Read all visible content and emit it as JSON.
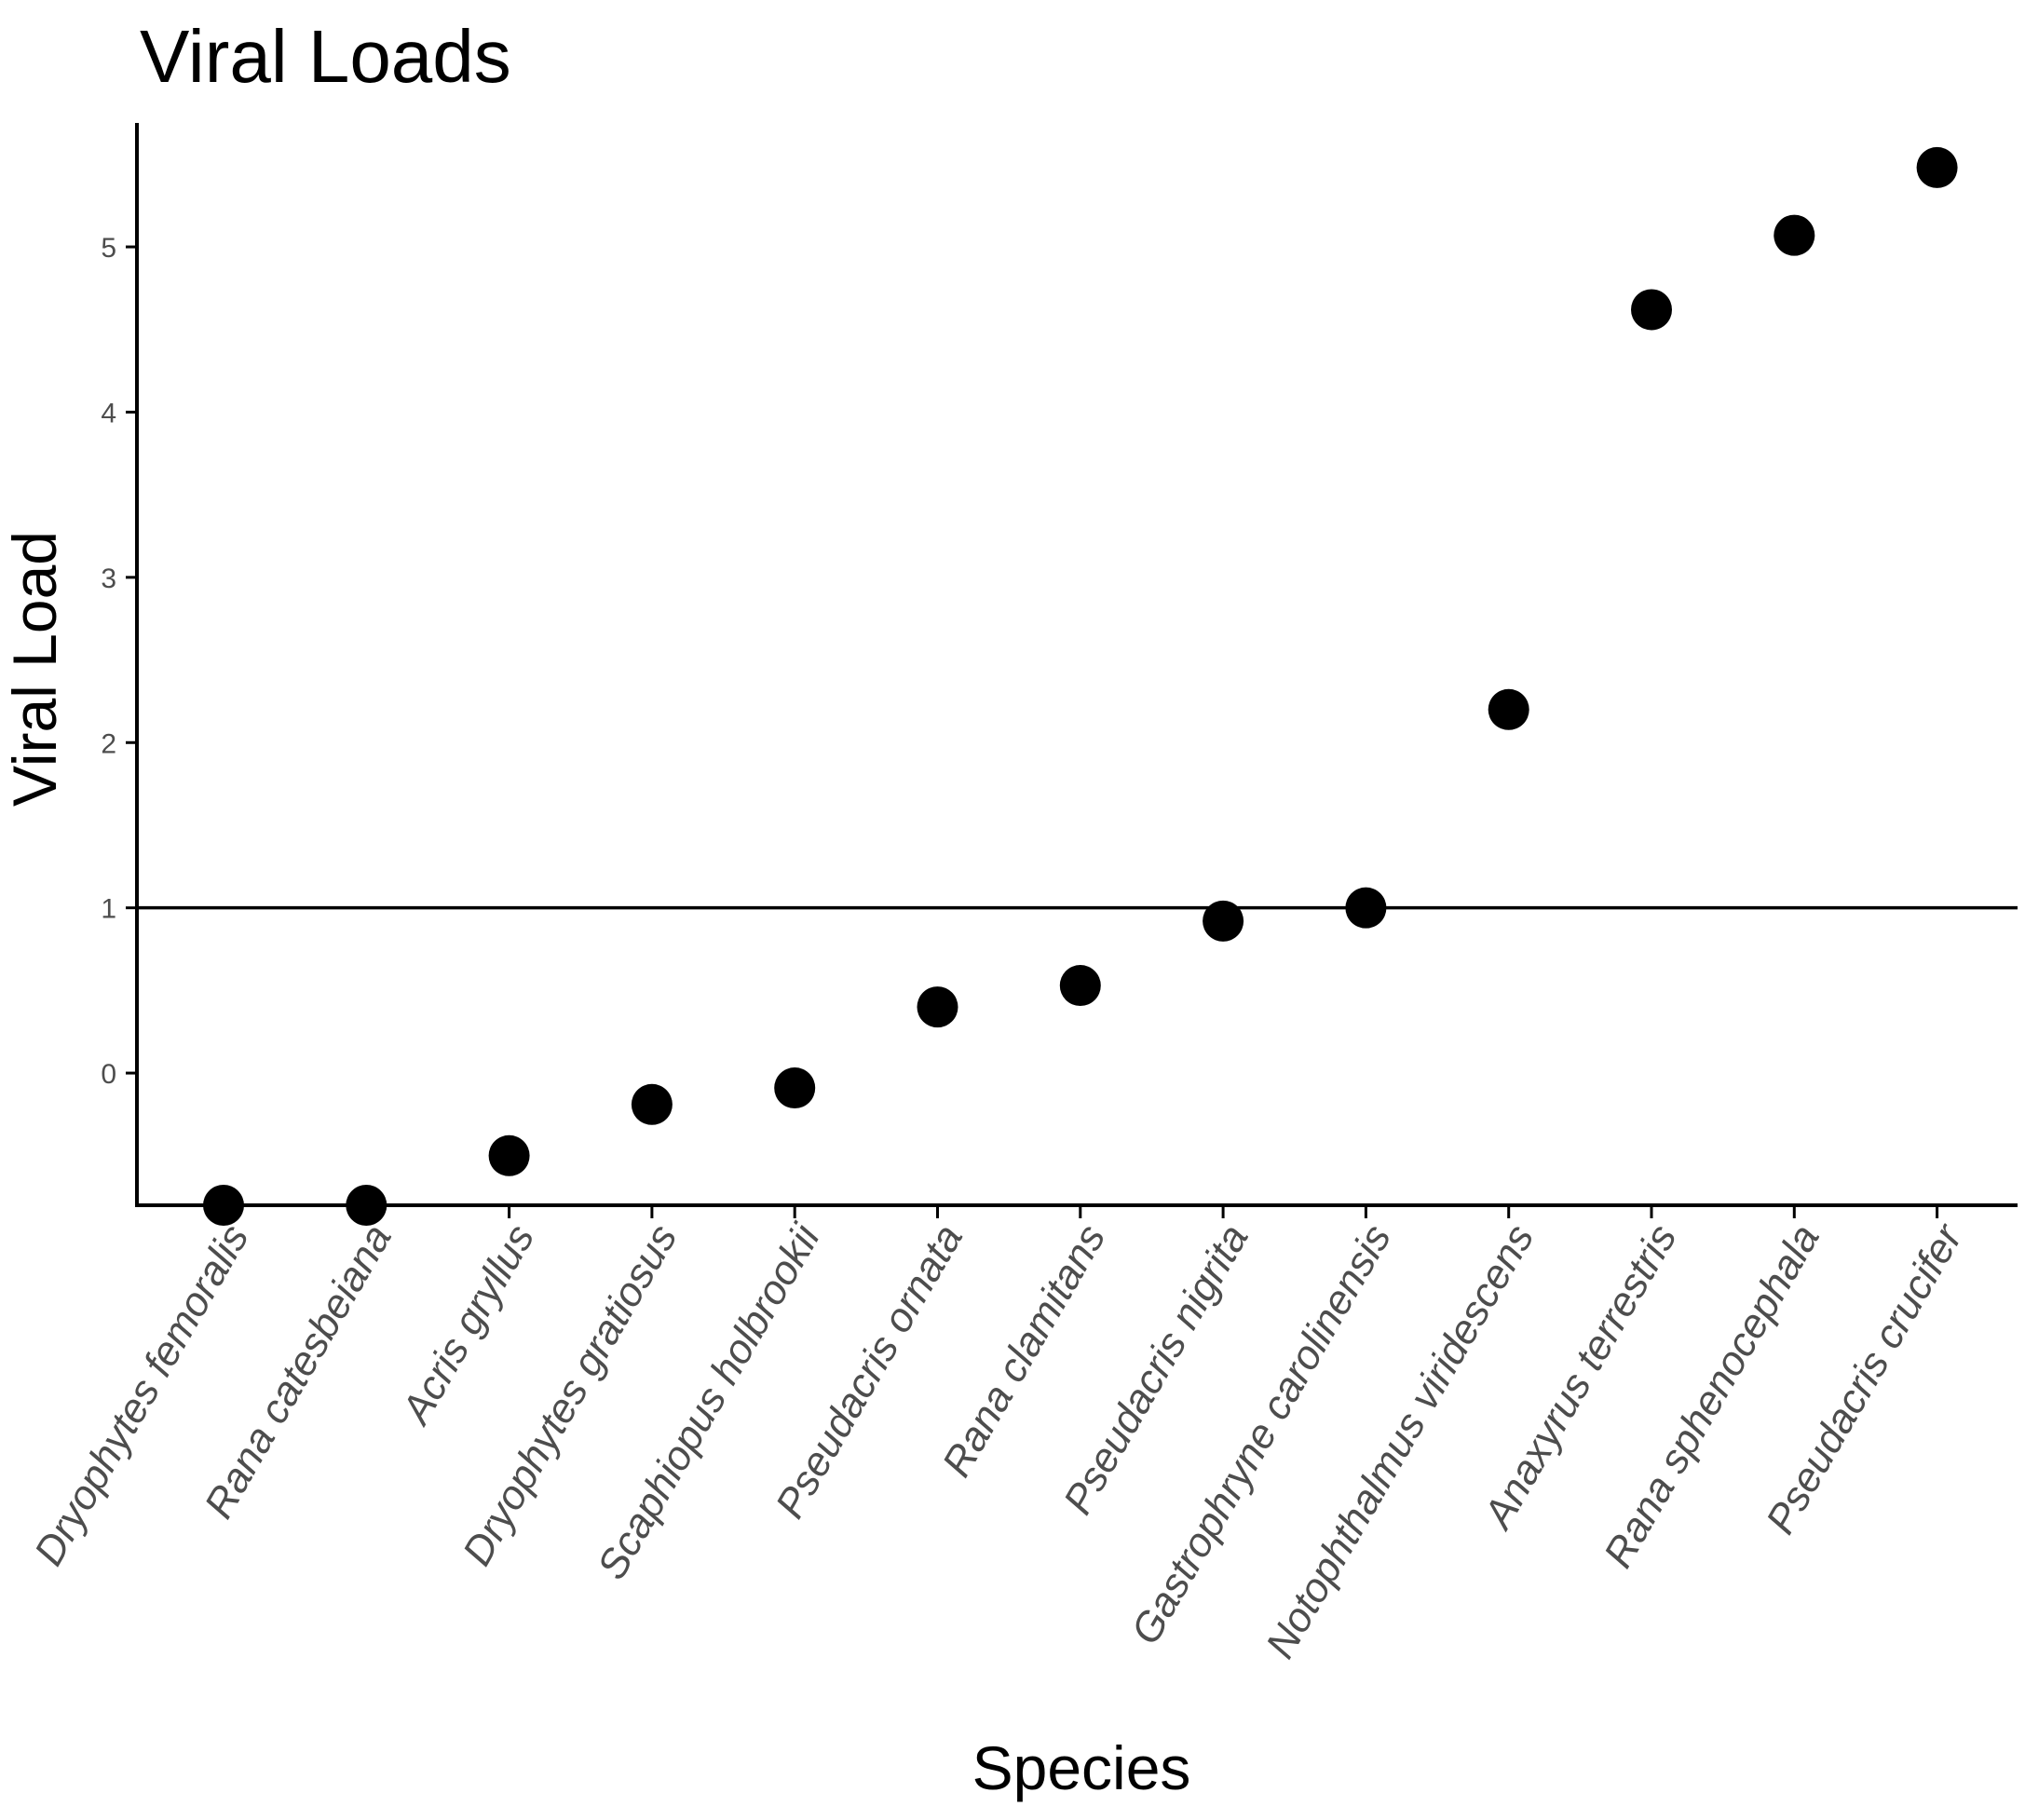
{
  "chart_data": {
    "type": "scatter",
    "title": "Viral Loads",
    "xlabel": "Species",
    "ylabel": "Viral Load",
    "categories": [
      "Dryophytes femoralis",
      "Rana catesbeiana",
      "Acris gryllus",
      "Dryophytes gratiosus",
      "Scaphiopus holbrookii",
      "Pseudacris ornata",
      "Rana clamitans",
      "Pseudacris nigrita",
      "Gastrophryne carolinensis",
      "Notophthalmus viridescens",
      "Anaxyrus terrestris",
      "Rana sphenocephala",
      "Pseudacris crucifer"
    ],
    "values": [
      -0.8,
      -0.8,
      -0.5,
      -0.19,
      -0.09,
      0.4,
      0.53,
      0.92,
      1.0,
      2.2,
      4.62,
      5.07,
      5.48
    ],
    "ylim": [
      -0.8,
      5.75
    ],
    "yticks": [
      "0",
      "1",
      "2",
      "3",
      "4",
      "5"
    ],
    "hline": 1,
    "grid": false,
    "legend": "none",
    "point_color": "#000000"
  }
}
